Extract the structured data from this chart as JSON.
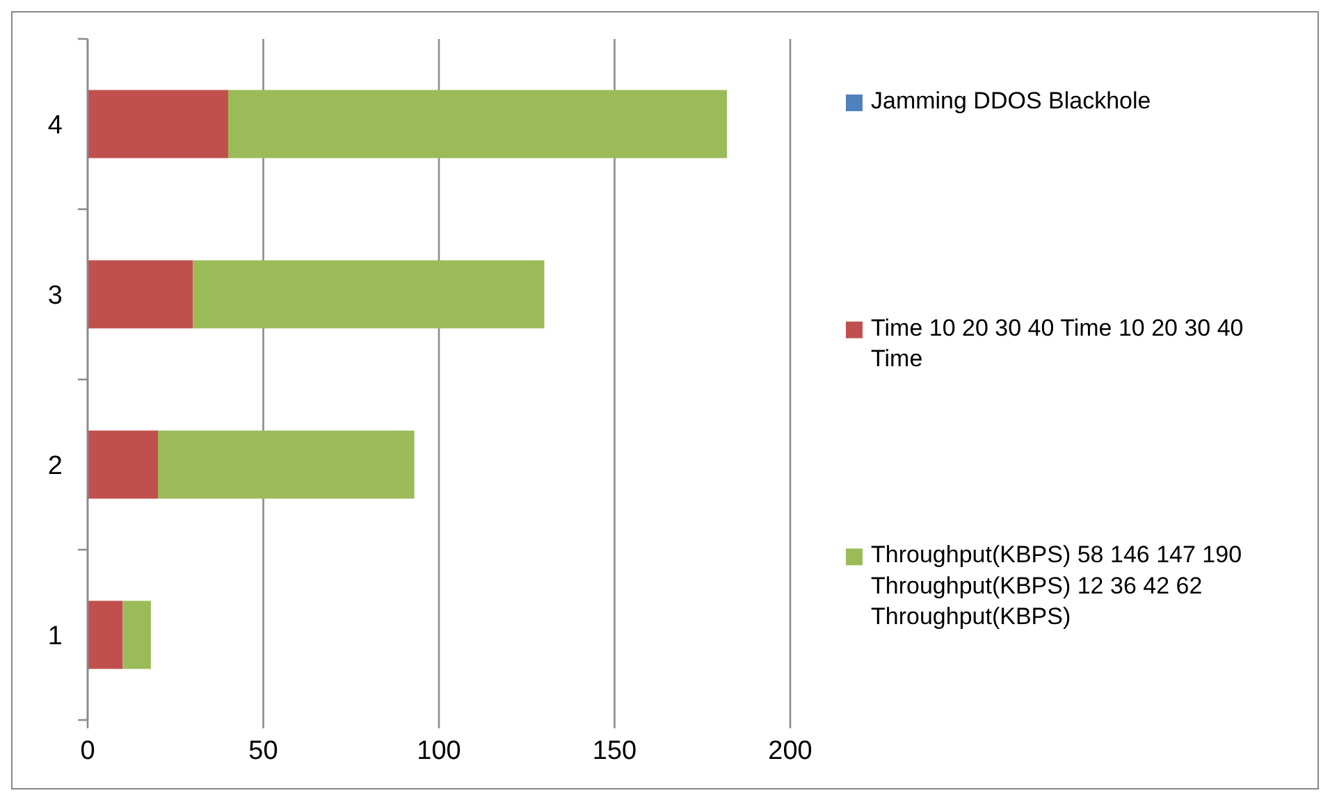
{
  "chart_data": {
    "type": "bar",
    "orientation": "horizontal",
    "stacked": true,
    "categories": [
      "4",
      "3",
      "2",
      "1"
    ],
    "series": [
      {
        "name": "Jamming DDOS Blackhole",
        "color": "#4f81bd",
        "values": [
          0,
          0,
          0,
          0
        ]
      },
      {
        "name": "Time 10 20 30 40 Time 10 20 30 40 Time",
        "color": "#c0504d",
        "values": [
          40,
          30,
          20,
          10
        ]
      },
      {
        "name": "Throughput(KBPS) 58 146 147 190 Throughput(KBPS) 12 36 42 62 Throughput(KBPS)",
        "color": "#9bbb59",
        "values": [
          142,
          100,
          73,
          8
        ]
      }
    ],
    "xlim": [
      0,
      200
    ],
    "xticks": [
      0,
      50,
      100,
      150,
      200
    ],
    "grid": "x",
    "legend": "right"
  }
}
